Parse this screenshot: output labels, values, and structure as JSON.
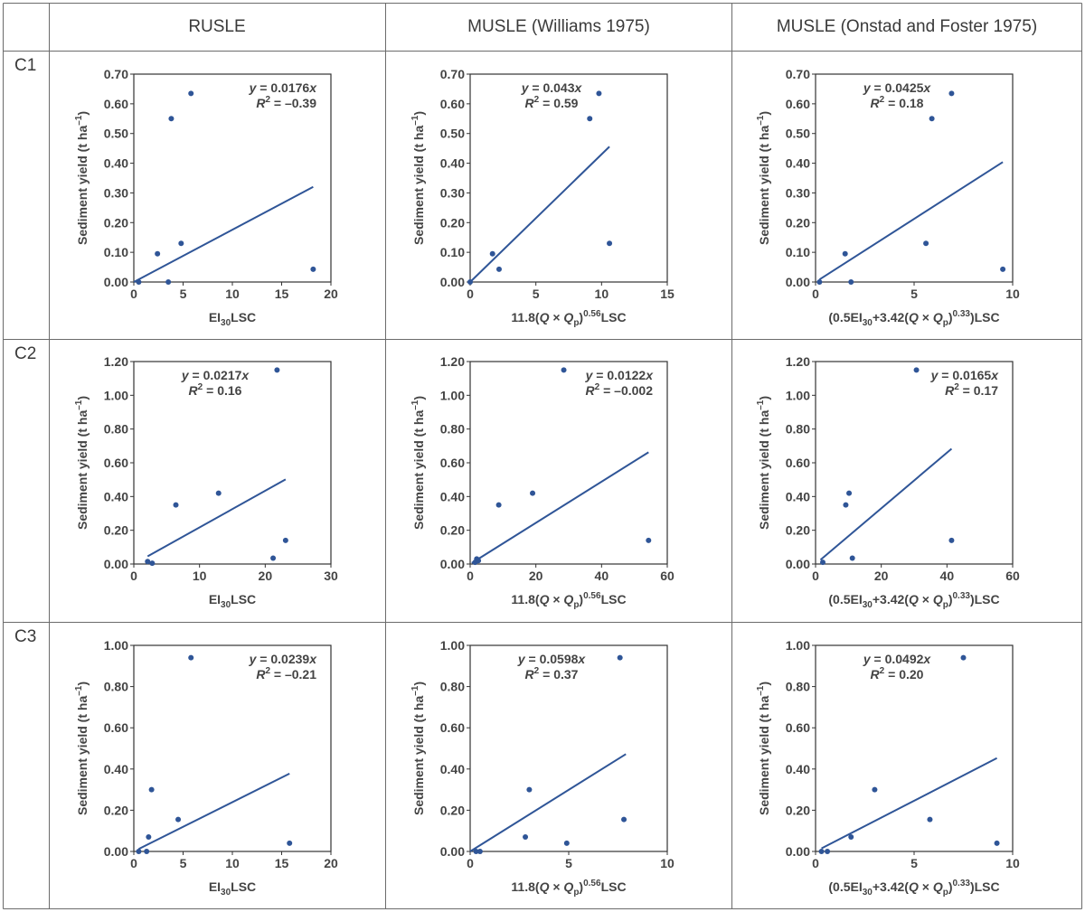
{
  "columns": [
    {
      "label": "RUSLE"
    },
    {
      "label": "MUSLE (Williams 1975)"
    },
    {
      "label": "MUSLE (Onstad and Foster 1975)"
    }
  ],
  "rows": [
    {
      "label": "C1"
    },
    {
      "label": "C2"
    },
    {
      "label": "C3"
    }
  ],
  "style": {
    "point_color": "#2f5597",
    "line_color": "#2f5597",
    "axis_color": "#333333",
    "grid_color": "#6b6b6b"
  },
  "chart_data": [
    {
      "id": "C1-RUSLE",
      "type": "scatter",
      "ylabel": "Sediment yield (t ha–1)",
      "xlabel": "EI30LSC",
      "xlim": [
        0,
        20
      ],
      "xticks": [
        0,
        5,
        10,
        15,
        20
      ],
      "ylim": [
        0,
        0.7
      ],
      "yticks": [
        "0.00",
        "0.10",
        "0.20",
        "0.30",
        "0.40",
        "0.50",
        "0.60",
        "0.70"
      ],
      "points": [
        [
          0.5,
          0
        ],
        [
          2.4,
          0.095
        ],
        [
          3.5,
          0
        ],
        [
          3.8,
          0.55
        ],
        [
          4.8,
          0.13
        ],
        [
          5.8,
          0.635
        ],
        [
          18.2,
          0.043
        ]
      ],
      "fit": {
        "slope": 0.0176,
        "x_range": [
          0,
          18.2
        ]
      },
      "eq": {
        "lhs": "y = ",
        "slope": "0.0176",
        "var": "x",
        "r2": " = –0.39",
        "pos": "top-right"
      }
    },
    {
      "id": "C1-Williams",
      "type": "scatter",
      "ylabel": "Sediment yield (t ha–1)",
      "xlabel": "11.8(Q × Qp)0.56LSC",
      "xlim": [
        0,
        15
      ],
      "xticks": [
        0,
        5,
        10,
        15
      ],
      "ylim": [
        0,
        0.7
      ],
      "yticks": [
        "0.00",
        "0.10",
        "0.20",
        "0.30",
        "0.40",
        "0.50",
        "0.60",
        "0.70"
      ],
      "points": [
        [
          0,
          0
        ],
        [
          1.7,
          0.095
        ],
        [
          2.2,
          0.043
        ],
        [
          9.1,
          0.55
        ],
        [
          9.8,
          0.635
        ],
        [
          10.6,
          0.13
        ]
      ],
      "fit": {
        "slope": 0.043,
        "x_range": [
          0,
          10.6
        ]
      },
      "eq": {
        "lhs": "y = ",
        "slope": "0.043",
        "var": "x",
        "r2": " = 0.59",
        "pos": "top-left"
      }
    },
    {
      "id": "C1-Onstad",
      "type": "scatter",
      "ylabel": "Sediment yield (t ha–1)",
      "xlabel": "(0.5EI30+3.42(Q × Qp)0.33)LSC",
      "xlim": [
        0,
        10
      ],
      "xticks": [
        0,
        5,
        10
      ],
      "ylim": [
        0,
        0.7
      ],
      "yticks": [
        "0.00",
        "0.10",
        "0.20",
        "0.30",
        "0.40",
        "0.50",
        "0.60",
        "0.70"
      ],
      "points": [
        [
          0.2,
          0
        ],
        [
          1.5,
          0.095
        ],
        [
          1.8,
          0
        ],
        [
          5.6,
          0.13
        ],
        [
          5.9,
          0.55
        ],
        [
          6.9,
          0.635
        ],
        [
          9.5,
          0.043
        ]
      ],
      "fit": {
        "slope": 0.0425,
        "x_range": [
          0.2,
          9.5
        ]
      },
      "eq": {
        "lhs": "y = ",
        "slope": "0.0425",
        "var": "x",
        "r2": " = 0.18",
        "pos": "top-left"
      }
    },
    {
      "id": "C2-RUSLE",
      "type": "scatter",
      "ylabel": "Sediment yield (t ha–1)",
      "xlabel": "EI30LSC",
      "xlim": [
        0,
        30
      ],
      "xticks": [
        0,
        10,
        20,
        30
      ],
      "ylim": [
        0,
        1.2
      ],
      "yticks": [
        "0.00",
        "0.20",
        "0.40",
        "0.60",
        "0.80",
        "1.00",
        "1.20"
      ],
      "points": [
        [
          2.1,
          0.015
        ],
        [
          2.8,
          0.005
        ],
        [
          6.4,
          0.35
        ],
        [
          12.9,
          0.42
        ],
        [
          21.2,
          0.035
        ],
        [
          21.8,
          1.15
        ],
        [
          23.1,
          0.14
        ]
      ],
      "fit": {
        "slope": 0.0217,
        "x_range": [
          2.1,
          23.1
        ]
      },
      "eq": {
        "lhs": "y = ",
        "slope": "0.0217",
        "var": "x",
        "r2": " = 0.16",
        "pos": "top-left"
      }
    },
    {
      "id": "C2-Williams",
      "type": "scatter",
      "ylabel": "Sediment yield (t ha–1)",
      "xlabel": "11.8(Q × Qp)0.56LSC",
      "xlim": [
        0,
        60
      ],
      "xticks": [
        0,
        20,
        40,
        60
      ],
      "ylim": [
        0,
        1.2
      ],
      "yticks": [
        "0.00",
        "0.20",
        "0.40",
        "0.60",
        "0.80",
        "1.00",
        "1.20"
      ],
      "points": [
        [
          1.5,
          0.01
        ],
        [
          2.0,
          0.03
        ],
        [
          2.5,
          0.02
        ],
        [
          8.7,
          0.35
        ],
        [
          19.0,
          0.42
        ],
        [
          28.5,
          1.15
        ],
        [
          54.3,
          0.14
        ]
      ],
      "fit": {
        "slope": 0.0122,
        "x_range": [
          0.5,
          54.3
        ]
      },
      "eq": {
        "lhs": "y = ",
        "slope": "0.0122",
        "var": "x",
        "r2": " = –0.002",
        "pos": "top-right"
      }
    },
    {
      "id": "C2-Onstad",
      "type": "scatter",
      "ylabel": "Sediment yield (t ha–1)",
      "xlabel": "(0.5EI30+3.42(Q × Qp)0.33)LSC",
      "xlim": [
        0,
        60
      ],
      "xticks": [
        0,
        20,
        40,
        60
      ],
      "ylim": [
        0,
        1.2
      ],
      "yticks": [
        "0.00",
        "0.20",
        "0.40",
        "0.60",
        "0.80",
        "1.00",
        "1.20"
      ],
      "points": [
        [
          2.2,
          0.01
        ],
        [
          9.2,
          0.35
        ],
        [
          10.2,
          0.42
        ],
        [
          11.2,
          0.035
        ],
        [
          30.7,
          1.15
        ],
        [
          41.4,
          0.14
        ]
      ],
      "fit": {
        "slope": 0.0165,
        "x_range": [
          1.5,
          41.4
        ]
      },
      "eq": {
        "lhs": "y = ",
        "slope": "0.0165",
        "var": "x",
        "r2": " = 0.17",
        "pos": "top-right"
      }
    },
    {
      "id": "C3-RUSLE",
      "type": "scatter",
      "ylabel": "Sediment yield (t ha–1)",
      "xlabel": "EI30LSC",
      "xlim": [
        0,
        20
      ],
      "xticks": [
        0,
        5,
        10,
        15,
        20
      ],
      "ylim": [
        0,
        1.0
      ],
      "yticks": [
        "0.00",
        "0.20",
        "0.40",
        "0.60",
        "0.80",
        "1.00"
      ],
      "points": [
        [
          0.5,
          0
        ],
        [
          1.3,
          0
        ],
        [
          1.5,
          0.07
        ],
        [
          1.8,
          0.3
        ],
        [
          4.5,
          0.155
        ],
        [
          5.8,
          0.94
        ],
        [
          15.8,
          0.04
        ]
      ],
      "fit": {
        "slope": 0.0239,
        "x_range": [
          0.5,
          15.8
        ]
      },
      "eq": {
        "lhs": "y = ",
        "slope": "0.0239",
        "var": "x",
        "r2": " = –0.21",
        "pos": "top-right"
      }
    },
    {
      "id": "C3-Williams",
      "type": "scatter",
      "ylabel": "Sediment yield (t ha–1)",
      "xlabel": "11.8(Q × Qp)0.56LSC",
      "xlim": [
        0,
        10
      ],
      "xticks": [
        0,
        5,
        10
      ],
      "ylim": [
        0,
        1.0
      ],
      "yticks": [
        "0.00",
        "0.20",
        "0.40",
        "0.60",
        "0.80",
        "1.00"
      ],
      "points": [
        [
          0.3,
          0
        ],
        [
          0.5,
          0
        ],
        [
          2.8,
          0.07
        ],
        [
          3.0,
          0.3
        ],
        [
          4.9,
          0.04
        ],
        [
          7.6,
          0.94
        ],
        [
          7.8,
          0.155
        ]
      ],
      "fit": {
        "slope": 0.0598,
        "x_range": [
          0,
          7.9
        ]
      },
      "eq": {
        "lhs": "y = ",
        "slope": "0.0598",
        "var": "x",
        "r2": " = 0.37",
        "pos": "top-left"
      }
    },
    {
      "id": "C3-Onstad",
      "type": "scatter",
      "ylabel": "Sediment yield (t ha–1)",
      "xlabel": "(0.5EI30+3.42(Q × Qp)0.33)LSC",
      "xlim": [
        0,
        10
      ],
      "xticks": [
        0,
        5,
        10
      ],
      "ylim": [
        0,
        1.0
      ],
      "yticks": [
        "0.00",
        "0.20",
        "0.40",
        "0.60",
        "0.80",
        "1.00"
      ],
      "points": [
        [
          0.3,
          0
        ],
        [
          0.6,
          0
        ],
        [
          1.8,
          0.07
        ],
        [
          3.0,
          0.3
        ],
        [
          5.8,
          0.155
        ],
        [
          7.5,
          0.94
        ],
        [
          9.2,
          0.04
        ]
      ],
      "fit": {
        "slope": 0.0492,
        "x_range": [
          0.3,
          9.2
        ]
      },
      "eq": {
        "lhs": "y = ",
        "slope": "0.0492",
        "var": "x",
        "r2": " = 0.20",
        "pos": "top-left"
      }
    }
  ]
}
